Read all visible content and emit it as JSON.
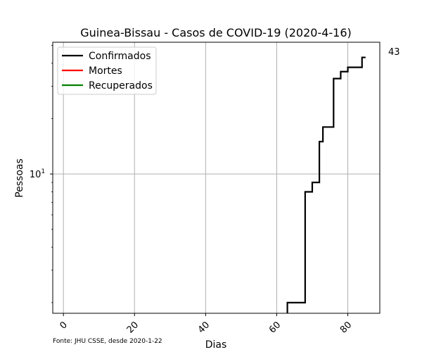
{
  "chart_data": {
    "type": "line",
    "title": "Guinea-Bissau - Casos de COVID-19 (2020-4-16)",
    "xlabel": "Dias",
    "ylabel": "Pessoas",
    "yscale": "log",
    "xlim": [
      -3,
      89
    ],
    "ylim": [
      1.75,
      52
    ],
    "grid": true,
    "legend_placement": "top-left",
    "x_ticks": [
      0,
      20,
      40,
      60,
      80
    ],
    "y_ticks": [
      {
        "value": 10,
        "base": "10",
        "exp": "1"
      }
    ],
    "annotation": "43",
    "footnote": "Fonte: JHU CSSE, desde 2020-1-22",
    "series": [
      {
        "name": "Confirmados",
        "color": "#000000",
        "x": [
          63,
          64,
          65,
          66,
          67,
          68,
          69,
          70,
          71,
          72,
          73,
          74,
          75,
          76,
          77,
          78,
          79,
          80,
          81,
          82,
          83,
          84,
          85
        ],
        "y": [
          2,
          2,
          2,
          2,
          2,
          8,
          8,
          9,
          9,
          15,
          18,
          18,
          18,
          33,
          33,
          36,
          36,
          38,
          38,
          38,
          38,
          43,
          43
        ]
      },
      {
        "name": "Mortes",
        "color": "#ff0000",
        "x": [],
        "y": []
      },
      {
        "name": "Recuperados",
        "color": "#008000",
        "x": [],
        "y": []
      }
    ]
  }
}
